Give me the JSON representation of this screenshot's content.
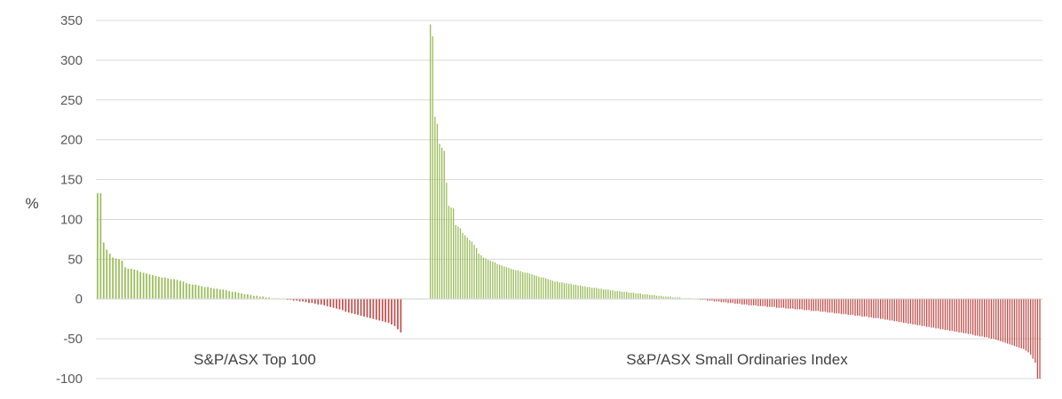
{
  "chart_data": {
    "type": "bar",
    "ylabel": "%",
    "ylim": [
      -100,
      350
    ],
    "yticks": [
      350,
      300,
      250,
      200,
      150,
      100,
      50,
      0,
      -50,
      -100
    ],
    "grid": true,
    "colors": {
      "positive": "#9BBB59",
      "negative": "#C0504D"
    },
    "groups": [
      {
        "label": "S&P/ASX Top 100",
        "values": [
          133,
          133,
          71,
          62,
          57,
          52,
          51,
          50,
          48,
          40,
          38,
          38,
          37,
          36,
          34,
          33,
          32,
          31,
          30,
          29,
          28,
          27,
          27,
          26,
          25,
          25,
          24,
          23,
          22,
          20,
          19,
          18,
          18,
          17,
          16,
          15,
          15,
          14,
          13,
          13,
          12,
          12,
          11,
          10,
          9,
          9,
          8,
          7,
          6,
          6,
          5,
          4,
          4,
          3,
          3,
          2,
          2,
          1,
          1,
          1,
          0,
          0,
          -1,
          -1,
          -2,
          -2,
          -3,
          -3,
          -4,
          -5,
          -5,
          -6,
          -7,
          -7,
          -8,
          -9,
          -10,
          -11,
          -12,
          -13,
          -14,
          -16,
          -17,
          -18,
          -19,
          -20,
          -21,
          -22,
          -23,
          -24,
          -25,
          -26,
          -27,
          -28,
          -29,
          -30,
          -32,
          -34,
          -38,
          -42
        ]
      },
      {
        "label": "S&P/ASX Small Ordinaries Index",
        "values": [
          345,
          330,
          229,
          220,
          195,
          190,
          186,
          146,
          117,
          115,
          114,
          93,
          91,
          89,
          83,
          80,
          77,
          74,
          72,
          68,
          64,
          57,
          55,
          52,
          51,
          49,
          48,
          47,
          46,
          44,
          43,
          42,
          41,
          40,
          39,
          38,
          37,
          36,
          36,
          35,
          34,
          33,
          33,
          32,
          31,
          30,
          29,
          28,
          27,
          27,
          26,
          25,
          24,
          23,
          22,
          22,
          21,
          21,
          20,
          20,
          19,
          19,
          18,
          18,
          17,
          17,
          16,
          16,
          15,
          15,
          14,
          14,
          14,
          13,
          13,
          12,
          12,
          12,
          11,
          11,
          10,
          10,
          10,
          9,
          9,
          9,
          8,
          8,
          8,
          7,
          7,
          7,
          6,
          6,
          6,
          5,
          5,
          5,
          4,
          4,
          4,
          3,
          3,
          3,
          3,
          2,
          2,
          2,
          2,
          1,
          1,
          1,
          1,
          1,
          0,
          0,
          0,
          -1,
          -1,
          -1,
          -2,
          -2,
          -2,
          -3,
          -3,
          -3,
          -4,
          -4,
          -4,
          -5,
          -5,
          -5,
          -6,
          -6,
          -6,
          -7,
          -7,
          -7,
          -8,
          -8,
          -8,
          -8,
          -9,
          -9,
          -9,
          -9,
          -10,
          -10,
          -10,
          -10,
          -11,
          -11,
          -11,
          -11,
          -12,
          -12,
          -12,
          -12,
          -13,
          -13,
          -13,
          -13,
          -14,
          -14,
          -14,
          -15,
          -15,
          -15,
          -15,
          -16,
          -16,
          -16,
          -17,
          -17,
          -17,
          -18,
          -18,
          -18,
          -19,
          -19,
          -19,
          -20,
          -20,
          -20,
          -21,
          -21,
          -21,
          -22,
          -22,
          -22,
          -23,
          -23,
          -24,
          -24,
          -24,
          -25,
          -25,
          -26,
          -26,
          -27,
          -27,
          -28,
          -28,
          -29,
          -29,
          -30,
          -30,
          -31,
          -31,
          -32,
          -32,
          -33,
          -33,
          -34,
          -34,
          -35,
          -35,
          -36,
          -36,
          -37,
          -37,
          -38,
          -38,
          -39,
          -39,
          -40,
          -40,
          -41,
          -41,
          -42,
          -42,
          -43,
          -43,
          -44,
          -44,
          -45,
          -46,
          -46,
          -47,
          -47,
          -48,
          -48,
          -49,
          -50,
          -50,
          -51,
          -52,
          -53,
          -54,
          -55,
          -56,
          -57,
          -58,
          -59,
          -60,
          -61,
          -62,
          -63,
          -65,
          -67,
          -70,
          -75,
          -80,
          -100,
          -100
        ]
      }
    ]
  }
}
